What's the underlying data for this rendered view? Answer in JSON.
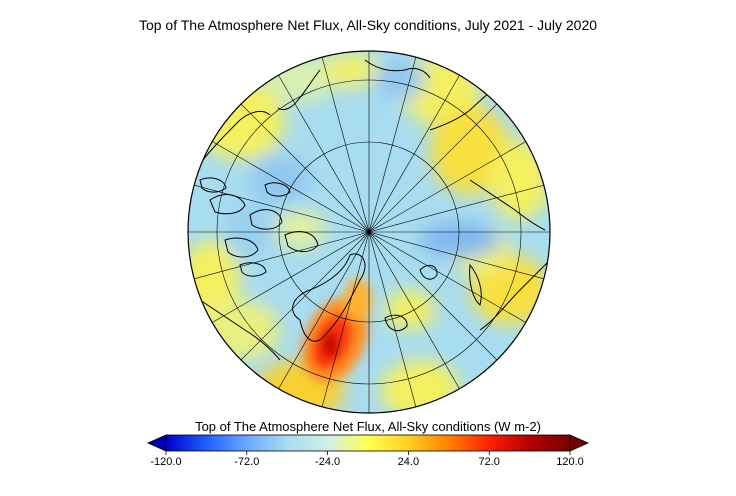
{
  "title": "Top of The Atmosphere Net Flux, All-Sky conditions, July 2021 - July 2020",
  "map": {
    "projection": "north polar stereographic",
    "colors": {
      "coast": "#000000",
      "grid": "#000000"
    }
  },
  "colorbar": {
    "title": "Top of The Atmosphere Net Flux, All-Sky conditions (W m-2)",
    "range": [
      -120.0,
      120.0
    ],
    "tick_labels": [
      "-120.0",
      "-72.0",
      "-24.0",
      "24.0",
      "72.0",
      "120.0"
    ],
    "tick_values": [
      -120,
      -72,
      -24,
      24,
      72,
      120
    ],
    "colors": [
      "#0000cd",
      "#1e5fff",
      "#6aa8ff",
      "#a8dcf0",
      "#d0f0e8",
      "#ffff50",
      "#ffd020",
      "#ff8000",
      "#ff2000",
      "#b40000",
      "#7a0000"
    ],
    "extend_low_color": "#0000b0",
    "extend_high_color": "#7a0000"
  }
}
